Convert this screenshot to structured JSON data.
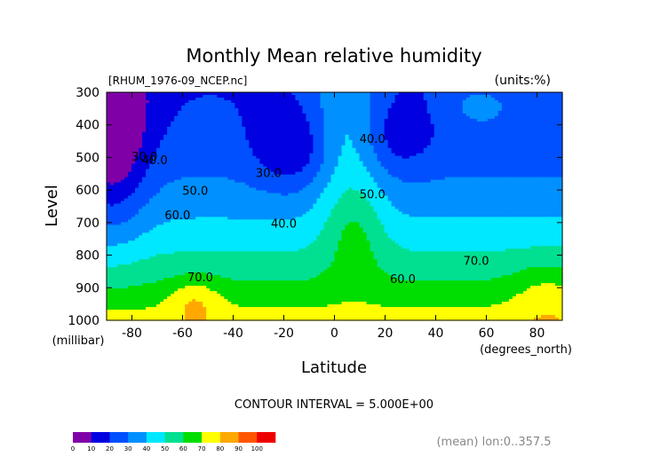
{
  "chart_data": {
    "type": "heatmap",
    "title": "Monthly Mean relative humidity",
    "subtitle_left": "[RHUM_1976-09_NCEP.nc]",
    "subtitle_right": "(units:%)",
    "xlabel": "Latitude",
    "x_unit": "(degrees_north)",
    "ylabel": "Level",
    "y_unit": "(millibar)",
    "xlim": [
      -90,
      90
    ],
    "ylim": [
      1000,
      300
    ],
    "x_ticks": [
      -80,
      -60,
      -40,
      -20,
      0,
      20,
      40,
      60,
      80
    ],
    "y_ticks": [
      300,
      400,
      500,
      600,
      700,
      800,
      900,
      1000
    ],
    "footer_center": "CONTOUR INTERVAL = 5.000E+00",
    "footer_right": "(mean) lon:0..357.5",
    "colorbar": {
      "ticks": [
        0,
        10,
        20,
        30,
        40,
        50,
        60,
        70,
        80,
        90,
        100
      ],
      "colors": [
        "#8000a8",
        "#0000e0",
        "#0050ff",
        "#0090ff",
        "#00e8ff",
        "#00e090",
        "#00dd00",
        "#ffff00",
        "#ffa800",
        "#ff5500",
        "#ee0000"
      ]
    },
    "contour_labels": [
      {
        "text": "30.0",
        "lat": -75,
        "lev": 510
      },
      {
        "text": "40.0",
        "lat": -71,
        "lev": 520
      },
      {
        "text": "50.0",
        "lat": -55,
        "lev": 615
      },
      {
        "text": "60.0",
        "lat": -62,
        "lev": 690
      },
      {
        "text": "70.0",
        "lat": -53,
        "lev": 880
      },
      {
        "text": "30.0",
        "lat": -26,
        "lev": 560
      },
      {
        "text": "40.0",
        "lat": -20,
        "lev": 715
      },
      {
        "text": "40.0",
        "lat": 15,
        "lev": 455
      },
      {
        "text": "50.0",
        "lat": 15,
        "lev": 625
      },
      {
        "text": "60.0",
        "lat": 27,
        "lev": 885
      },
      {
        "text": "70.0",
        "lat": 56,
        "lev": 830
      }
    ],
    "grid": false
  }
}
